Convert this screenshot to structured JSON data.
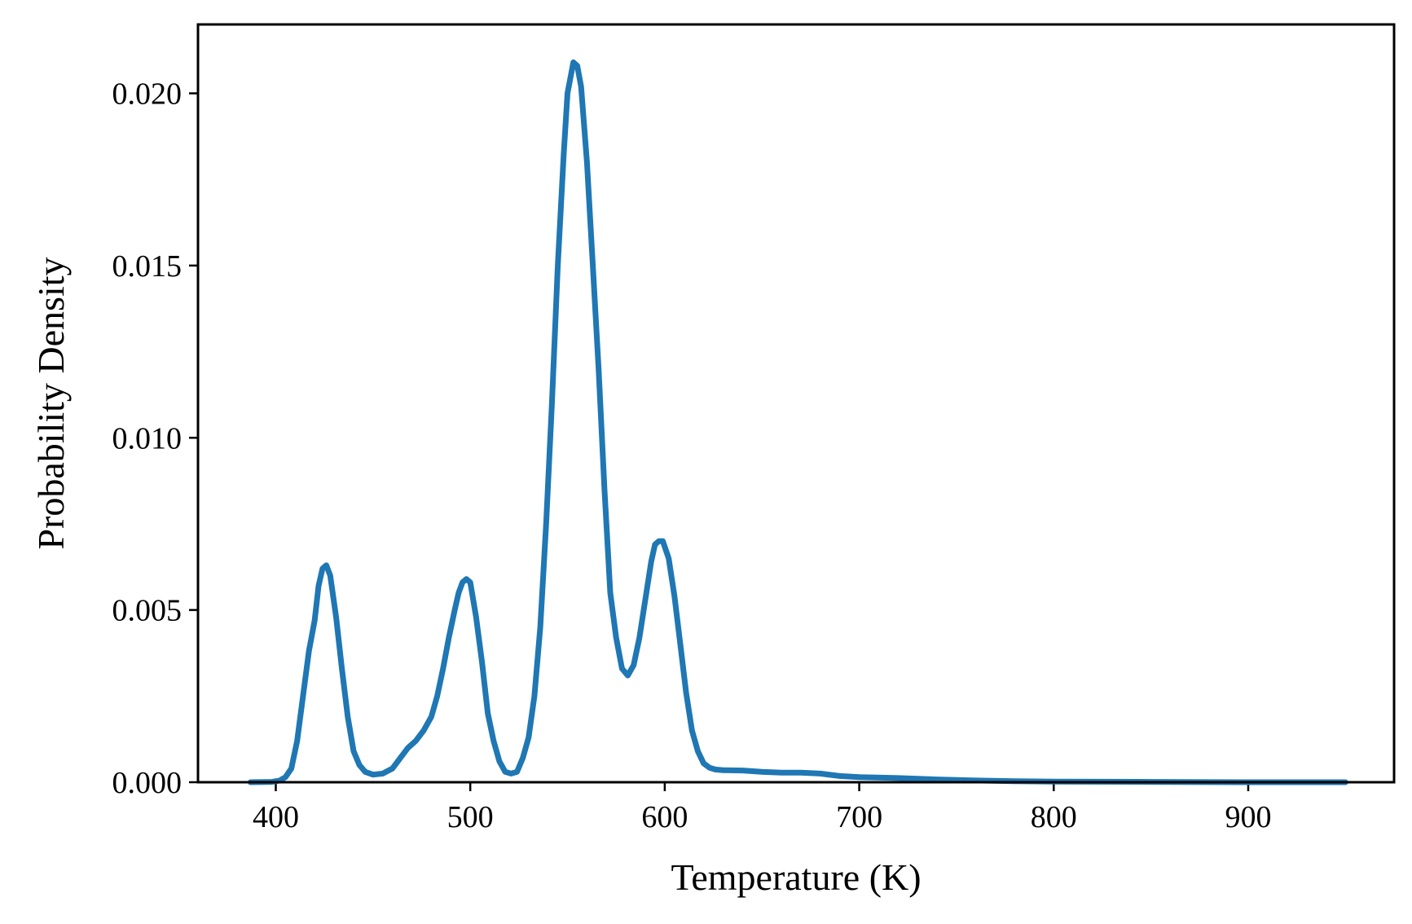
{
  "chart_data": {
    "type": "line",
    "title": "",
    "xlabel": "Temperature (K)",
    "ylabel": "Probability Density",
    "xlim": [
      360,
      975
    ],
    "ylim": [
      0,
      0.022
    ],
    "xticks": [
      400,
      500,
      600,
      700,
      800,
      900
    ],
    "yticks": [
      0,
      0.005,
      0.01,
      0.015,
      0.02
    ],
    "ytick_labels": [
      "0.000",
      "0.005",
      "0.010",
      "0.015",
      "0.020"
    ],
    "grid": false,
    "legend": "none",
    "colors": {
      "line": "#1f77b4",
      "axes": "#000000",
      "background": "#ffffff"
    },
    "series": [
      {
        "x": [
          387,
          398,
          402,
          405,
          408,
          411,
          414,
          417,
          420,
          422,
          424,
          426,
          428,
          431,
          434,
          437,
          440,
          443,
          446,
          450,
          455,
          460,
          464,
          468,
          472,
          476,
          480,
          483,
          486,
          489,
          492,
          494,
          496,
          498,
          500,
          503,
          506,
          509,
          512,
          515,
          518,
          521,
          524,
          527,
          530,
          533,
          536,
          539,
          542,
          545,
          548,
          550,
          553,
          555,
          557,
          560,
          563,
          566,
          569,
          572,
          575,
          578,
          581,
          584,
          587,
          590,
          593,
          595,
          597,
          599,
          602,
          605,
          608,
          611,
          614,
          617,
          620,
          623,
          626,
          630,
          640,
          650,
          660,
          670,
          680,
          690,
          700,
          720,
          740,
          760,
          780,
          800,
          850,
          900,
          950
        ],
        "y": [
          0.0,
          1e-05,
          5e-05,
          0.00015,
          0.0004,
          0.0012,
          0.0025,
          0.0038,
          0.0047,
          0.0057,
          0.0062,
          0.0063,
          0.006,
          0.0048,
          0.0033,
          0.0019,
          0.0009,
          0.0005,
          0.0003,
          0.00022,
          0.00025,
          0.0004,
          0.0007,
          0.001,
          0.0012,
          0.0015,
          0.0019,
          0.0025,
          0.0033,
          0.0042,
          0.005,
          0.0055,
          0.0058,
          0.0059,
          0.0058,
          0.0048,
          0.0035,
          0.002,
          0.0012,
          0.0006,
          0.0003,
          0.00025,
          0.0003,
          0.0007,
          0.0013,
          0.0025,
          0.0045,
          0.0075,
          0.011,
          0.015,
          0.0182,
          0.02,
          0.0209,
          0.0208,
          0.0202,
          0.018,
          0.015,
          0.012,
          0.0085,
          0.0055,
          0.0042,
          0.0033,
          0.0031,
          0.0034,
          0.0042,
          0.0053,
          0.0064,
          0.0069,
          0.007,
          0.007,
          0.0065,
          0.0054,
          0.004,
          0.0026,
          0.0015,
          0.0009,
          0.00055,
          0.00042,
          0.00037,
          0.00035,
          0.00034,
          0.0003,
          0.00028,
          0.00028,
          0.00025,
          0.00018,
          0.00015,
          0.00012,
          8e-05,
          5e-05,
          3e-05,
          2e-05,
          1e-05,
          0.0,
          0.0
        ]
      }
    ]
  }
}
